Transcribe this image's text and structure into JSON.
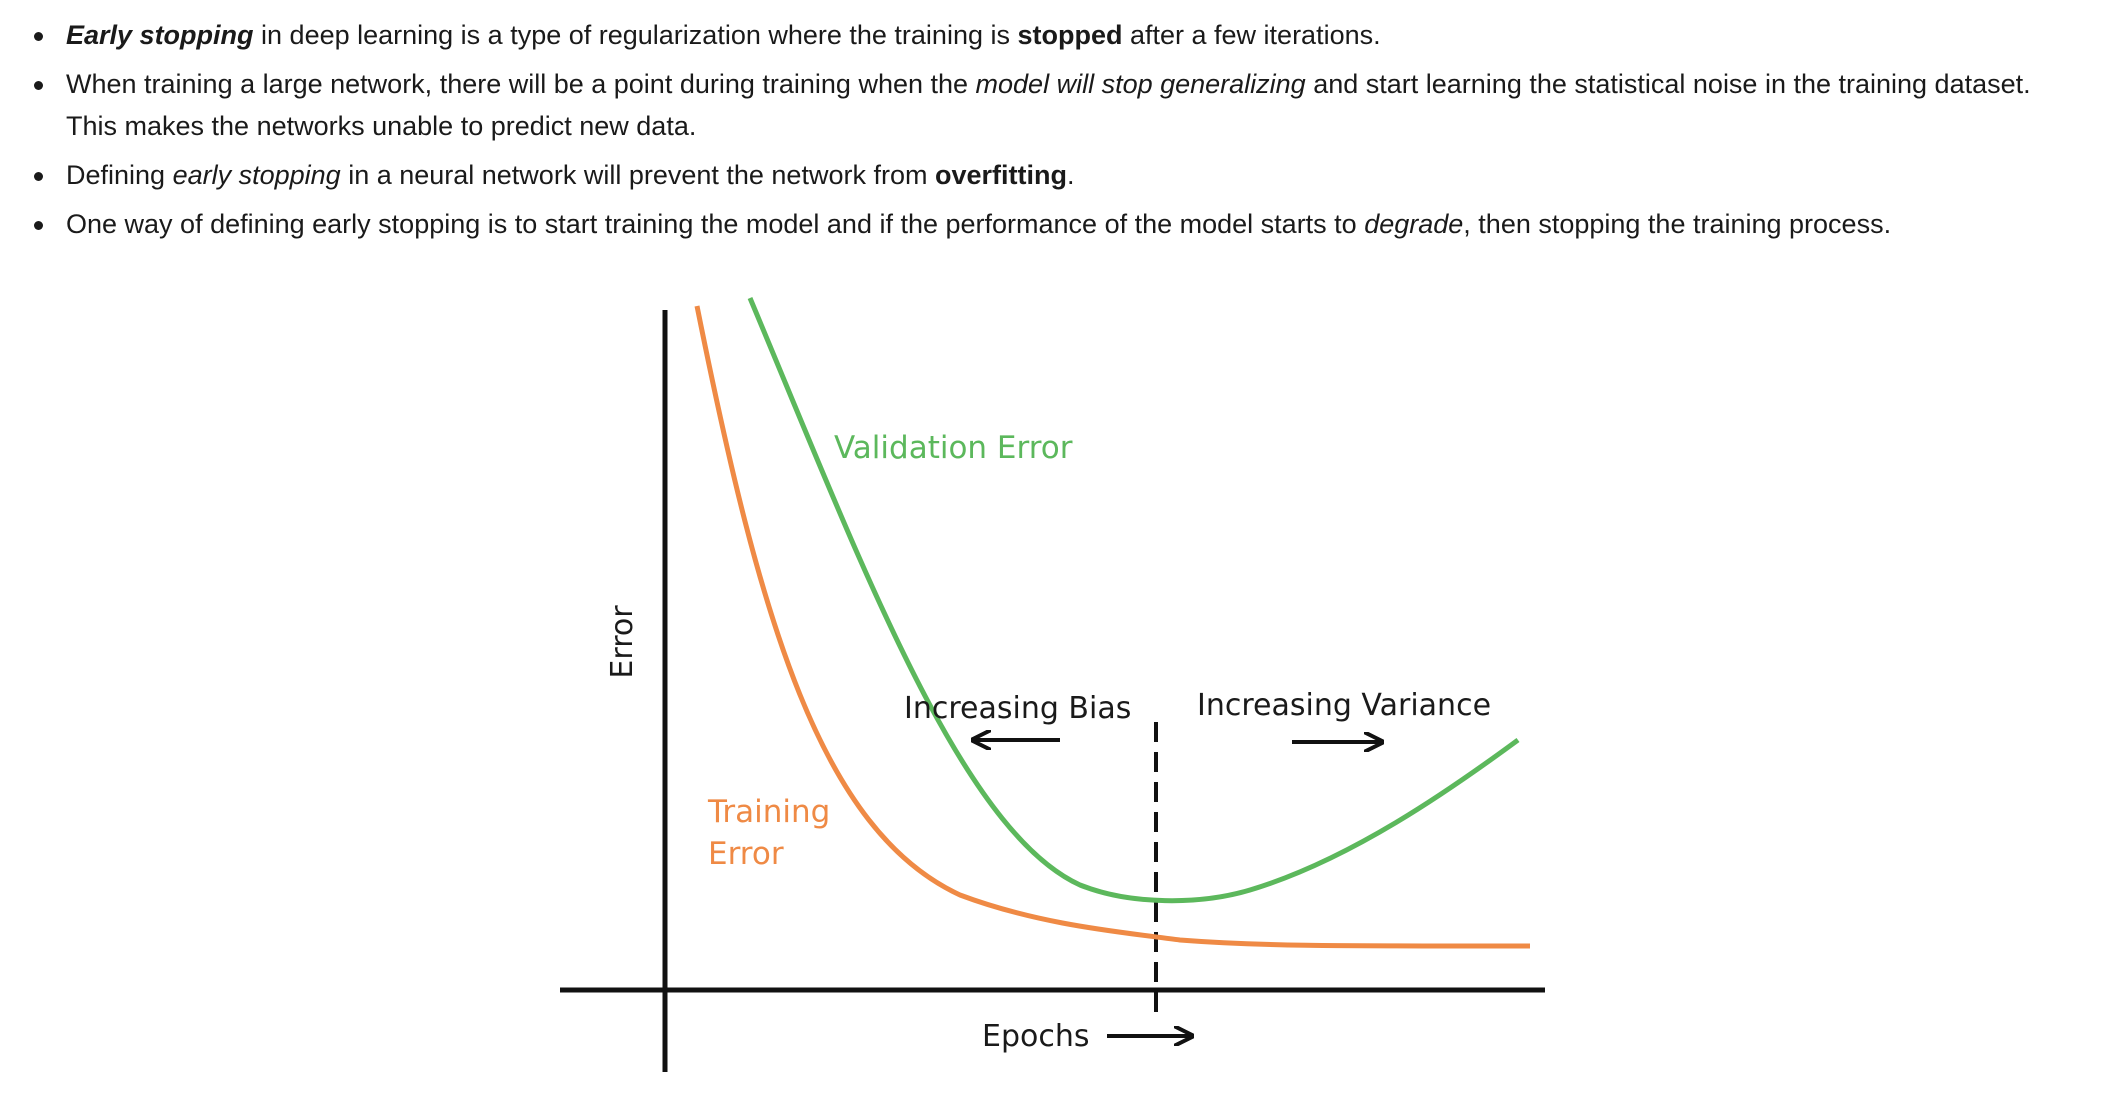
{
  "bullets": [
    {
      "segments": [
        {
          "text": "Early stopping",
          "style": "bold-italic"
        },
        {
          "text": " in deep learning is a type of regularization where the training is ",
          "style": "normal"
        },
        {
          "text": "stopped",
          "style": "bold"
        },
        {
          "text": " after a few iterations.",
          "style": "normal"
        }
      ]
    },
    {
      "segments": [
        {
          "text": "When training a large network, there will be a point during training when the ",
          "style": "normal"
        },
        {
          "text": "model will stop generalizing",
          "style": "italic"
        },
        {
          "text": " and start learning the statistical noise in the training dataset. This makes the networks unable to predict new data.",
          "style": "normal"
        }
      ]
    },
    {
      "segments": [
        {
          "text": "Defining ",
          "style": "normal"
        },
        {
          "text": "early stopping",
          "style": "italic"
        },
        {
          "text": " in a neural network will prevent the network from ",
          "style": "normal"
        },
        {
          "text": "overfitting",
          "style": "bold"
        },
        {
          "text": ".",
          "style": "normal"
        }
      ]
    },
    {
      "segments": [
        {
          "text": "One way of defining early stopping is to start training the model and if the performance of the model starts to ",
          "style": "normal"
        },
        {
          "text": "degrade",
          "style": "italic"
        },
        {
          "text": ", then stopping the training process.",
          "style": "normal"
        }
      ]
    }
  ],
  "diagram": {
    "y_axis_label": "Error",
    "x_axis_label": "Epochs",
    "validation_label": "Validation Error",
    "training_label_line1": "Training",
    "training_label_line2": "Error",
    "bias_label": "Increasing Bias",
    "variance_label": "Increasing Variance",
    "colors": {
      "validation": "#5cb85c",
      "training": "#ef8a45",
      "axis": "#111111",
      "text": "#1a1a1a"
    }
  }
}
